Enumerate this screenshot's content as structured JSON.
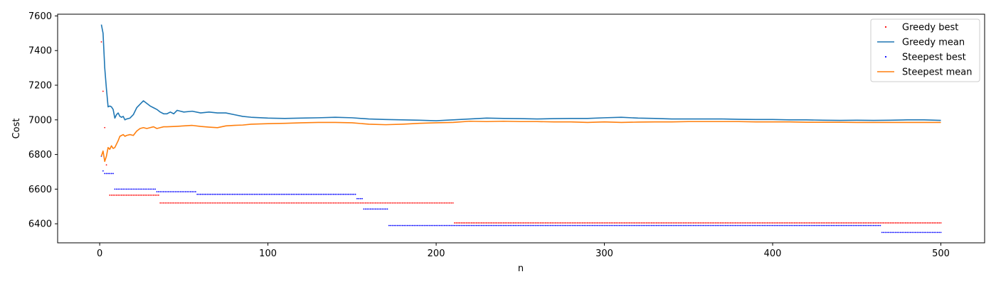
{
  "chart_data": {
    "type": "line",
    "xlabel": "n",
    "ylabel": "Cost",
    "xlim": [
      -25,
      526
    ],
    "ylim": [
      6290,
      7610
    ],
    "xticks": [
      0,
      100,
      200,
      300,
      400,
      500
    ],
    "yticks": [
      6400,
      6600,
      6800,
      7000,
      7200,
      7400,
      7600
    ],
    "legend_position": "upper-right",
    "series": [
      {
        "name": "Greedy best",
        "style": "points",
        "color": "#ff0000",
        "segments": [
          {
            "x_from": 1,
            "x_to": 1,
            "y": 7450
          },
          {
            "x_from": 2,
            "x_to": 2,
            "y": 7165
          },
          {
            "x_from": 3,
            "x_to": 3,
            "y": 6955
          },
          {
            "x_from": 4,
            "x_to": 4,
            "y": 6740
          },
          {
            "x_from": 6,
            "x_to": 35,
            "y": 6565
          },
          {
            "x_from": 36,
            "x_to": 210,
            "y": 6520
          },
          {
            "x_from": 211,
            "x_to": 500,
            "y": 6405
          }
        ]
      },
      {
        "name": "Greedy mean",
        "style": "line",
        "color": "#1f77b4",
        "points": [
          [
            1,
            7550
          ],
          [
            2,
            7500
          ],
          [
            3,
            7300
          ],
          [
            4,
            7180
          ],
          [
            5,
            7075
          ],
          [
            6,
            7080
          ],
          [
            7,
            7075
          ],
          [
            8,
            7060
          ],
          [
            9,
            7010
          ],
          [
            10,
            7030
          ],
          [
            11,
            7040
          ],
          [
            12,
            7020
          ],
          [
            13,
            7015
          ],
          [
            14,
            7020
          ],
          [
            15,
            7000
          ],
          [
            16,
            7005
          ],
          [
            18,
            7010
          ],
          [
            20,
            7030
          ],
          [
            22,
            7070
          ],
          [
            24,
            7090
          ],
          [
            26,
            7110
          ],
          [
            28,
            7095
          ],
          [
            30,
            7080
          ],
          [
            32,
            7070
          ],
          [
            34,
            7060
          ],
          [
            36,
            7045
          ],
          [
            38,
            7035
          ],
          [
            40,
            7035
          ],
          [
            42,
            7045
          ],
          [
            44,
            7035
          ],
          [
            46,
            7055
          ],
          [
            48,
            7050
          ],
          [
            50,
            7045
          ],
          [
            55,
            7050
          ],
          [
            60,
            7040
          ],
          [
            65,
            7045
          ],
          [
            70,
            7040
          ],
          [
            75,
            7040
          ],
          [
            80,
            7030
          ],
          [
            85,
            7020
          ],
          [
            90,
            7015
          ],
          [
            100,
            7010
          ],
          [
            110,
            7008
          ],
          [
            120,
            7010
          ],
          [
            130,
            7012
          ],
          [
            140,
            7015
          ],
          [
            150,
            7012
          ],
          [
            160,
            7005
          ],
          [
            170,
            7002
          ],
          [
            180,
            7000
          ],
          [
            190,
            6998
          ],
          [
            200,
            6995
          ],
          [
            210,
            7000
          ],
          [
            220,
            7005
          ],
          [
            230,
            7010
          ],
          [
            240,
            7008
          ],
          [
            250,
            7007
          ],
          [
            260,
            7005
          ],
          [
            270,
            7007
          ],
          [
            280,
            7008
          ],
          [
            290,
            7008
          ],
          [
            300,
            7012
          ],
          [
            310,
            7015
          ],
          [
            320,
            7010
          ],
          [
            330,
            7008
          ],
          [
            340,
            7005
          ],
          [
            350,
            7005
          ],
          [
            360,
            7005
          ],
          [
            370,
            7005
          ],
          [
            380,
            7003
          ],
          [
            390,
            7002
          ],
          [
            400,
            7002
          ],
          [
            410,
            7000
          ],
          [
            420,
            7000
          ],
          [
            430,
            6998
          ],
          [
            440,
            6997
          ],
          [
            450,
            6998
          ],
          [
            460,
            6997
          ],
          [
            470,
            6998
          ],
          [
            480,
            7000
          ],
          [
            490,
            7000
          ],
          [
            500,
            6997
          ]
        ]
      },
      {
        "name": "Steepest best",
        "style": "points",
        "color": "#0000ff",
        "segments": [
          {
            "x_from": 1,
            "x_to": 1,
            "y": 6790
          },
          {
            "x_from": 2,
            "x_to": 2,
            "y": 6705
          },
          {
            "x_from": 3,
            "x_to": 8,
            "y": 6690
          },
          {
            "x_from": 9,
            "x_to": 33,
            "y": 6600
          },
          {
            "x_from": 34,
            "x_to": 57,
            "y": 6585
          },
          {
            "x_from": 58,
            "x_to": 152,
            "y": 6570
          },
          {
            "x_from": 153,
            "x_to": 156,
            "y": 6545
          },
          {
            "x_from": 157,
            "x_to": 171,
            "y": 6485
          },
          {
            "x_from": 172,
            "x_to": 464,
            "y": 6390
          },
          {
            "x_from": 465,
            "x_to": 500,
            "y": 6350
          }
        ]
      },
      {
        "name": "Steepest mean",
        "style": "line",
        "color": "#ff7f0e",
        "points": [
          [
            1,
            6790
          ],
          [
            2,
            6820
          ],
          [
            3,
            6760
          ],
          [
            4,
            6790
          ],
          [
            5,
            6840
          ],
          [
            6,
            6830
          ],
          [
            7,
            6850
          ],
          [
            8,
            6835
          ],
          [
            9,
            6840
          ],
          [
            10,
            6860
          ],
          [
            11,
            6880
          ],
          [
            12,
            6905
          ],
          [
            13,
            6910
          ],
          [
            14,
            6915
          ],
          [
            15,
            6905
          ],
          [
            16,
            6910
          ],
          [
            18,
            6915
          ],
          [
            20,
            6910
          ],
          [
            22,
            6935
          ],
          [
            24,
            6950
          ],
          [
            26,
            6955
          ],
          [
            28,
            6950
          ],
          [
            30,
            6955
          ],
          [
            32,
            6960
          ],
          [
            34,
            6950
          ],
          [
            36,
            6955
          ],
          [
            38,
            6960
          ],
          [
            40,
            6960
          ],
          [
            45,
            6962
          ],
          [
            50,
            6965
          ],
          [
            55,
            6968
          ],
          [
            60,
            6962
          ],
          [
            65,
            6958
          ],
          [
            70,
            6955
          ],
          [
            75,
            6965
          ],
          [
            80,
            6968
          ],
          [
            85,
            6970
          ],
          [
            90,
            6975
          ],
          [
            100,
            6978
          ],
          [
            110,
            6980
          ],
          [
            120,
            6983
          ],
          [
            130,
            6985
          ],
          [
            140,
            6985
          ],
          [
            150,
            6983
          ],
          [
            160,
            6975
          ],
          [
            170,
            6972
          ],
          [
            180,
            6975
          ],
          [
            190,
            6980
          ],
          [
            200,
            6983
          ],
          [
            210,
            6985
          ],
          [
            220,
            6992
          ],
          [
            230,
            6990
          ],
          [
            240,
            6992
          ],
          [
            250,
            6990
          ],
          [
            260,
            6990
          ],
          [
            270,
            6988
          ],
          [
            280,
            6988
          ],
          [
            290,
            6985
          ],
          [
            300,
            6988
          ],
          [
            310,
            6985
          ],
          [
            320,
            6987
          ],
          [
            330,
            6988
          ],
          [
            340,
            6988
          ],
          [
            350,
            6990
          ],
          [
            360,
            6990
          ],
          [
            370,
            6990
          ],
          [
            380,
            6990
          ],
          [
            390,
            6988
          ],
          [
            400,
            6988
          ],
          [
            410,
            6988
          ],
          [
            420,
            6986
          ],
          [
            430,
            6986
          ],
          [
            440,
            6986
          ],
          [
            450,
            6985
          ],
          [
            460,
            6985
          ],
          [
            470,
            6985
          ],
          [
            480,
            6985
          ],
          [
            490,
            6985
          ],
          [
            500,
            6985
          ]
        ]
      }
    ]
  }
}
